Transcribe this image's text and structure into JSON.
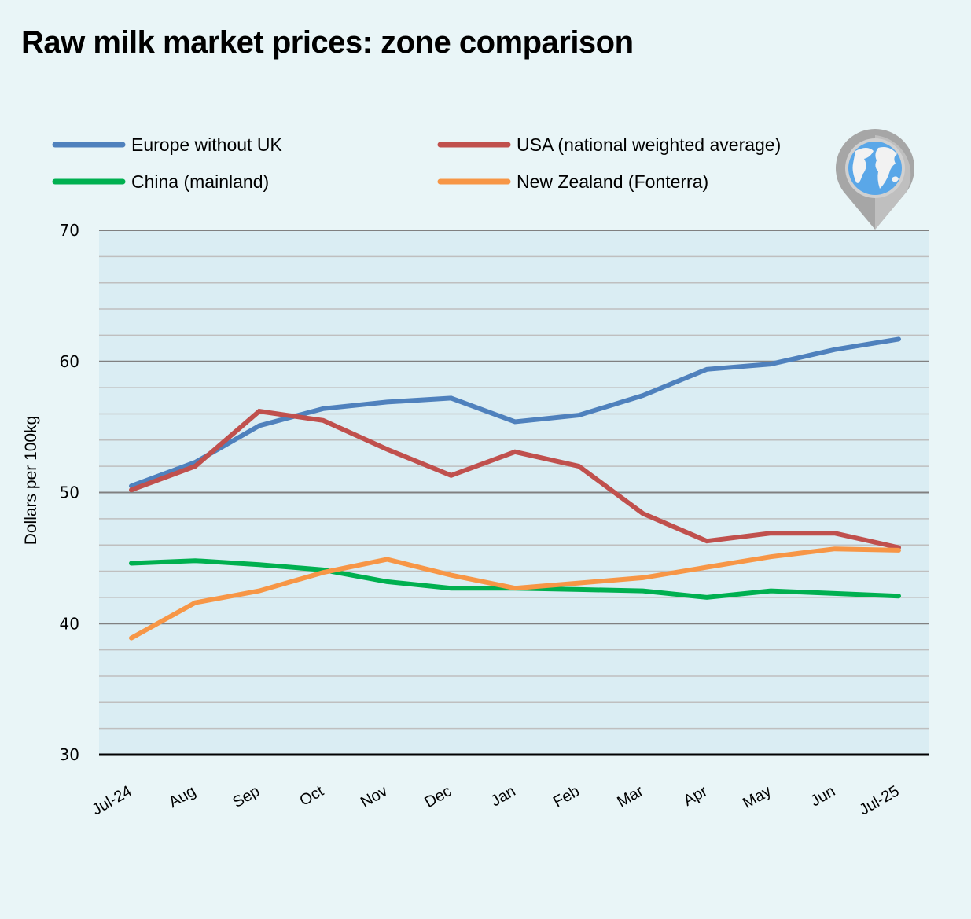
{
  "chart_data": {
    "type": "line",
    "title": "Raw milk market prices: zone comparison",
    "xlabel": "",
    "ylabel": "Dollars per 100kg",
    "ylim": [
      30,
      70
    ],
    "yticks": [
      30,
      40,
      50,
      60,
      70
    ],
    "minor_grid_step": 2,
    "grid": true,
    "legend_position": "top",
    "categories": [
      "Jul-24",
      "Aug",
      "Sep",
      "Oct",
      "Nov",
      "Dec",
      "Jan",
      "Feb",
      "Mar",
      "Apr",
      "May",
      "Jun",
      "Jul-25"
    ],
    "series": [
      {
        "name": "Europe without UK",
        "color": "#4f81bd",
        "values": [
          50.5,
          52.3,
          55.1,
          56.4,
          56.9,
          57.2,
          55.4,
          55.9,
          57.4,
          59.4,
          59.8,
          60.9,
          61.7
        ]
      },
      {
        "name": "USA (national weighted average)",
        "color": "#c0504d",
        "values": [
          50.2,
          52.0,
          56.2,
          55.5,
          53.3,
          51.3,
          53.1,
          52.0,
          48.4,
          46.3,
          46.9,
          46.9,
          45.8
        ]
      },
      {
        "name": "China (mainland)",
        "color": "#00b050",
        "values": [
          44.6,
          44.8,
          44.5,
          44.1,
          43.2,
          42.7,
          42.7,
          42.6,
          42.5,
          42.0,
          42.5,
          42.3,
          42.1
        ]
      },
      {
        "name": "New Zealand (Fonterra)",
        "color": "#f79646",
        "values": [
          38.9,
          41.6,
          42.5,
          43.9,
          44.9,
          43.7,
          42.7,
          43.1,
          43.5,
          44.3,
          45.1,
          45.7,
          45.6
        ]
      }
    ]
  },
  "decoration": {
    "icon": "globe-map-pin-icon"
  }
}
